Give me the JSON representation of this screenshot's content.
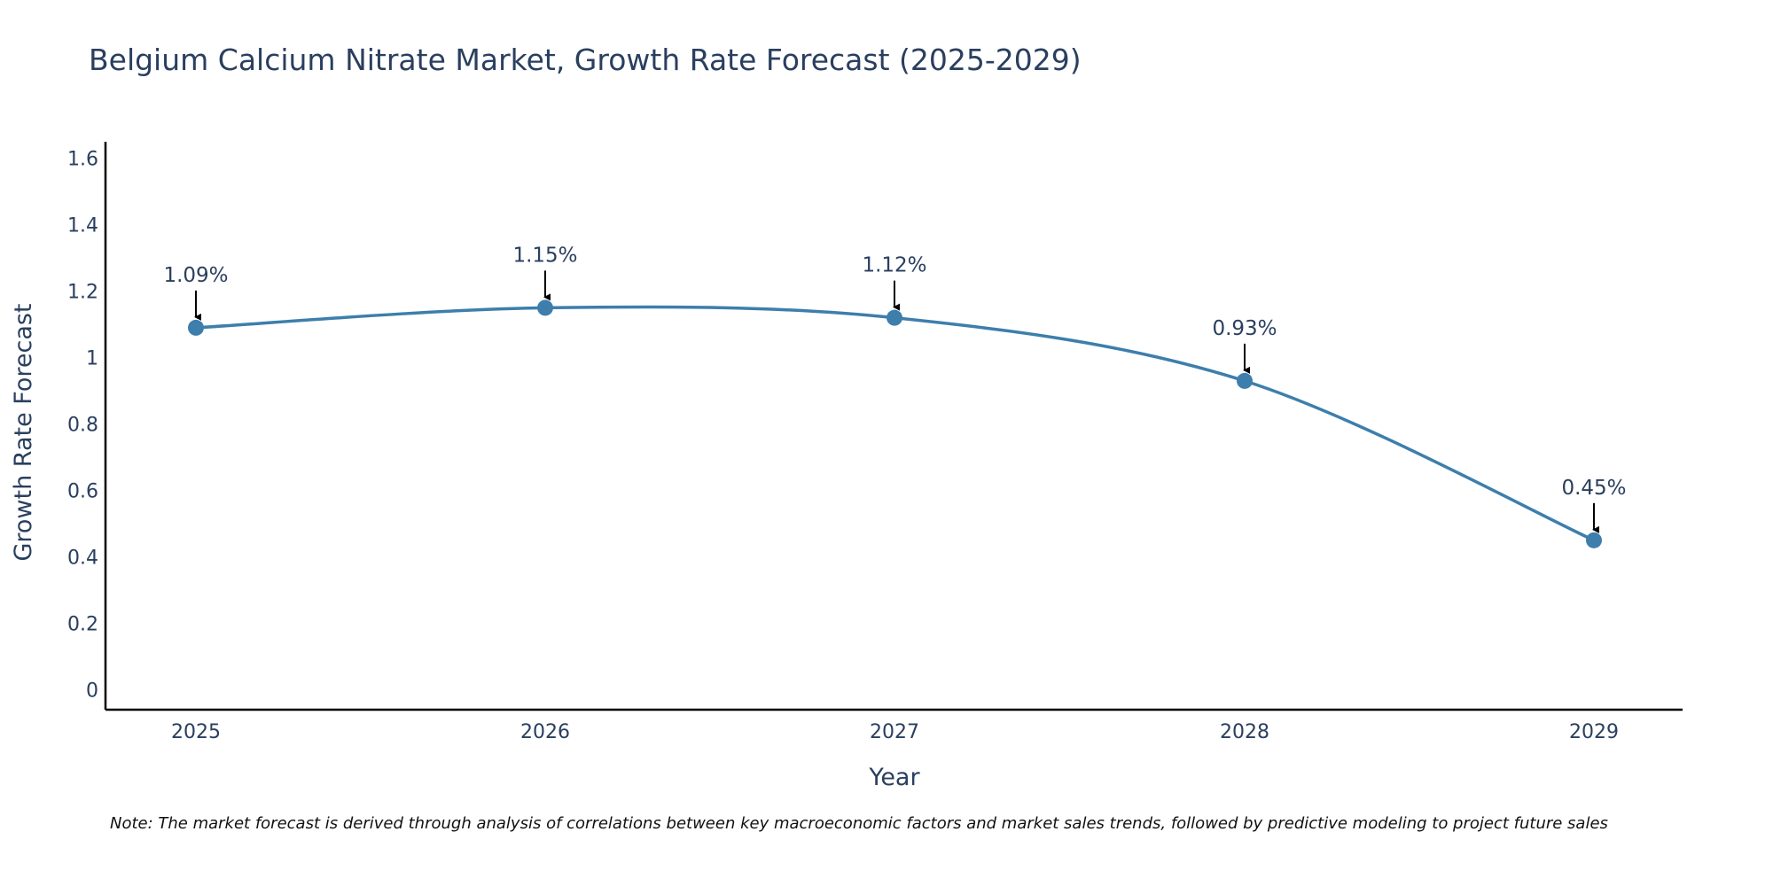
{
  "chart_data": {
    "type": "line",
    "title": "Belgium Calcium Nitrate Market, Growth Rate Forecast (2025-2029)",
    "xlabel": "Year",
    "ylabel": "Growth Rate Forecast",
    "categories": [
      "2025",
      "2026",
      "2027",
      "2028",
      "2029"
    ],
    "series": [
      {
        "name": "Growth Rate Forecast",
        "values": [
          1.09,
          1.15,
          1.12,
          0.93,
          0.45
        ]
      }
    ],
    "data_labels": [
      "1.09%",
      "1.15%",
      "1.12%",
      "0.93%",
      "0.45%"
    ],
    "ylim": [
      -0.06,
      1.65
    ],
    "yticks": [
      0,
      0.2,
      0.4,
      0.6,
      0.8,
      1,
      1.2,
      1.4,
      1.6
    ],
    "ytick_labels": [
      "0",
      "0.2",
      "0.4",
      "0.6",
      "0.8",
      "1",
      "1.2",
      "1.4",
      "1.6"
    ],
    "grid": false,
    "line_shape": "spline",
    "colors": {
      "line": "#3d7eac",
      "marker": "#3d7eac",
      "arrow": "#000000",
      "axis": "#000000",
      "text": "#2a3f5f"
    }
  },
  "note": "Note: The market forecast is derived through analysis of correlations between key macroeconomic factors and market sales trends, followed by predictive modeling to project future sales"
}
